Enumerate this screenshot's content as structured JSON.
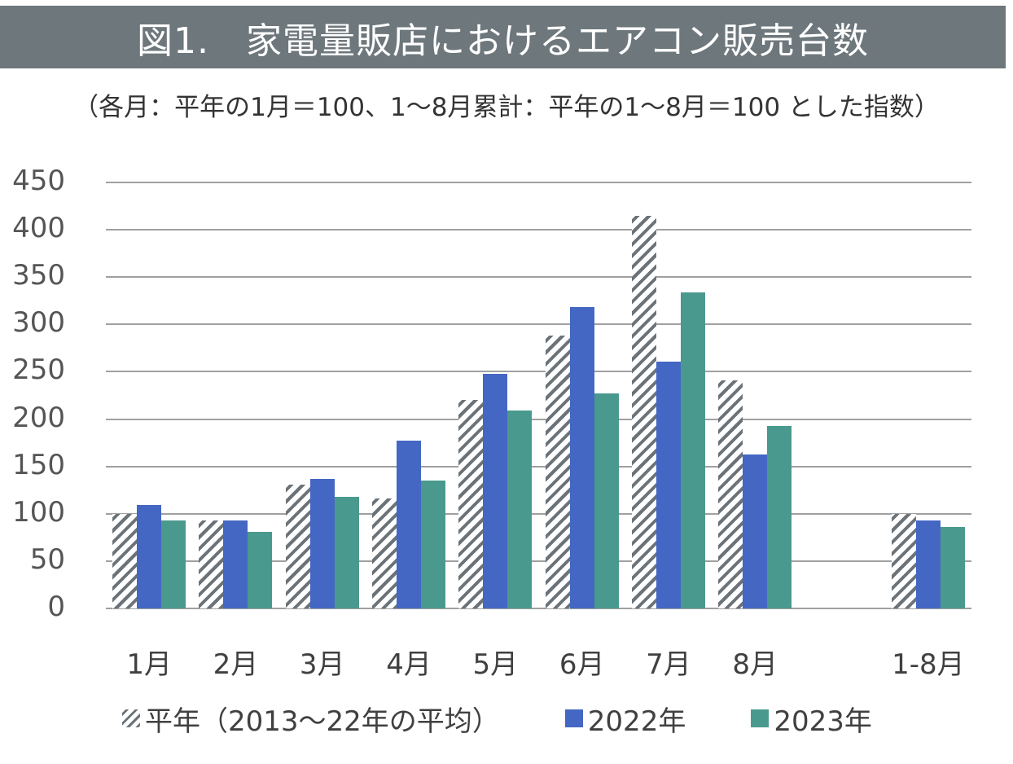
{
  "title": "図1.　家電量販店におけるエアコン販売台数",
  "subtitle": "（各月：平年の1月＝100、1～8月累計：平年の1～8月＝100 とした指数）",
  "colors": {
    "title_band": "#6d777c",
    "series_avg": "#6b7378",
    "series_2022": "#4467c4",
    "series_2023": "#4a998e",
    "gridline": "#a0a0a0"
  },
  "chart_data": {
    "type": "bar",
    "title": "図1.　家電量販店におけるエアコン販売台数",
    "subtitle": "（各月：平年の1月＝100、1～8月累計：平年の1～8月＝100 とした指数）",
    "categories": [
      "1月",
      "2月",
      "3月",
      "4月",
      "5月",
      "6月",
      "7月",
      "8月",
      "",
      "1-8月"
    ],
    "series": [
      {
        "name": "平年（2013～22年の平均）",
        "style": "hatched",
        "values": [
          100,
          93,
          131,
          116,
          220,
          288,
          415,
          241,
          null,
          100
        ]
      },
      {
        "name": "2022年",
        "style": "solid-blue",
        "values": [
          109,
          93,
          137,
          177,
          248,
          318,
          261,
          163,
          null,
          93
        ]
      },
      {
        "name": "2023年",
        "style": "solid-teal",
        "values": [
          93,
          81,
          118,
          135,
          209,
          227,
          334,
          193,
          null,
          86
        ]
      }
    ],
    "xlabel": "",
    "ylabel": "",
    "ylim": [
      0,
      450
    ],
    "yticks": [
      0,
      50,
      100,
      150,
      200,
      250,
      300,
      350,
      400,
      450
    ],
    "grid": true,
    "legend_position": "bottom"
  },
  "legend": [
    {
      "label": "平年（2013～22年の平均）"
    },
    {
      "label": "2022年"
    },
    {
      "label": "2023年"
    }
  ]
}
